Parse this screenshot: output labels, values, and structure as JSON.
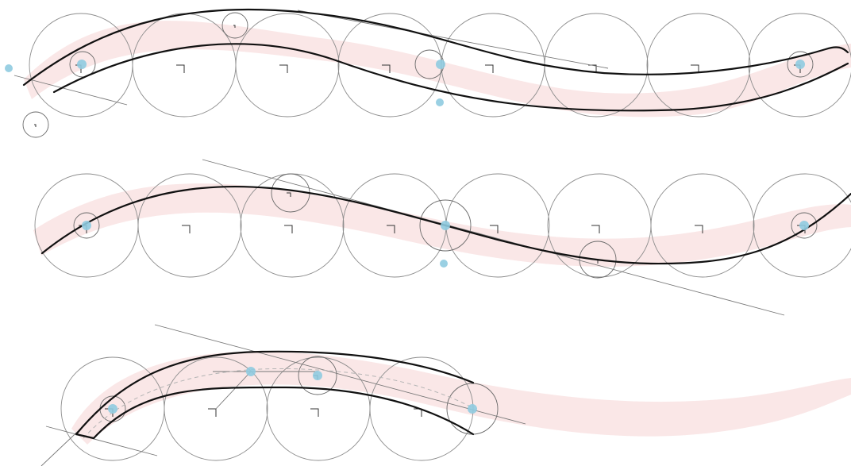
{
  "diagram": {
    "panels": [
      {
        "name": "row-1",
        "circles": 8
      },
      {
        "name": "row-2",
        "circles": 8
      },
      {
        "name": "row-3",
        "circles": 4
      }
    ],
    "colors": {
      "band": "#f4c9c9",
      "circle_stroke": "#8d8d8d",
      "curve_stroke": "#111111",
      "marker": "#8fcbe0"
    }
  }
}
